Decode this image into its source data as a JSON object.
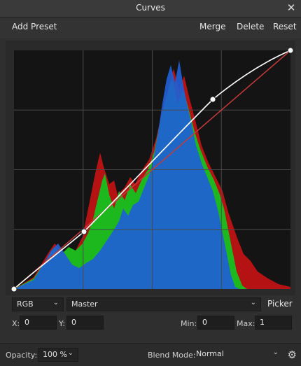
{
  "window": {
    "title": "Curves",
    "close_icon": "close-icon"
  },
  "toolbar": {
    "add_preset": "Add Preset",
    "merge": "Merge",
    "delete": "Delete",
    "reset": "Reset"
  },
  "controls": {
    "channel": "RGB",
    "curve_target": "Master",
    "picker": "Picker",
    "x_label": "X:",
    "x_value": "0",
    "y_label": "Y:",
    "y_value": "0",
    "min_label": "Min:",
    "min_value": "0",
    "max_label": "Max:",
    "max_value": "1"
  },
  "bottom": {
    "opacity_label": "Opacity:",
    "opacity_value": "100 %",
    "blend_label": "Blend Mode:",
    "blend_value": "Normal",
    "settings_icon": "gear-icon"
  },
  "curve": {
    "points": [
      [
        0,
        0
      ],
      [
        0.25,
        0.23
      ],
      [
        0.72,
        0.71
      ],
      [
        1,
        1
      ]
    ],
    "colors": {
      "master_curve": "#ffffff",
      "red_curve": "#c43a3a",
      "blue_hist": "#1f5fd6",
      "green_hist": "#1db81d",
      "red_hist": "#b51313"
    }
  }
}
